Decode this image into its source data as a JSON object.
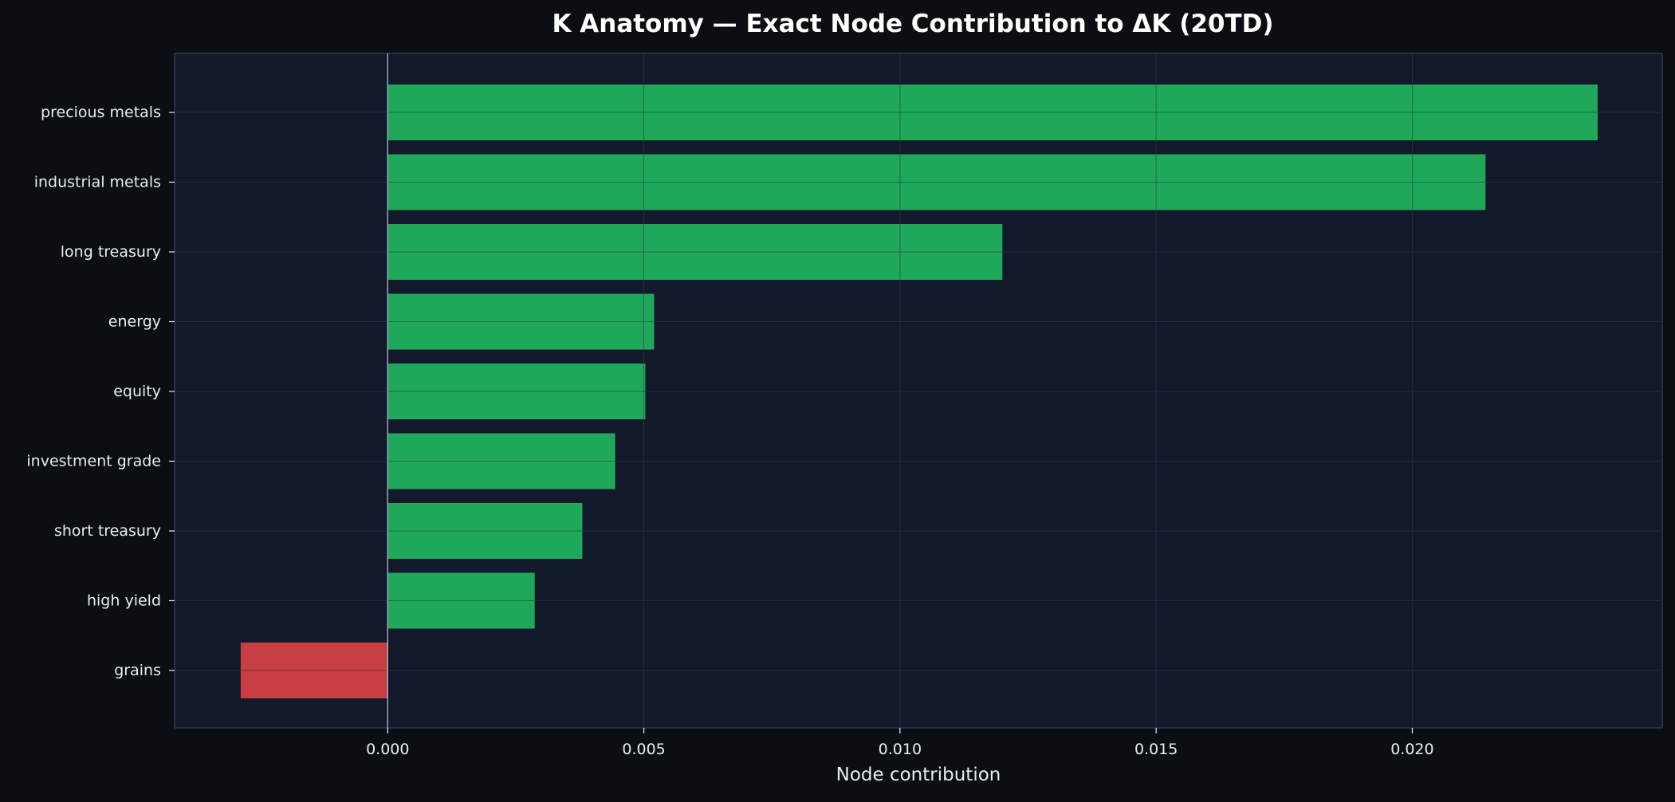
{
  "chart_data": {
    "type": "bar",
    "orientation": "horizontal",
    "title": "K Anatomy — Exact Node Contribution to ΔK (20TD)",
    "xlabel": "Node contribution",
    "ylabel": "",
    "categories": [
      "precious metals",
      "industrial metals",
      "long treasury",
      "energy",
      "equity",
      "investment grade",
      "short treasury",
      "high yield",
      "grains"
    ],
    "values": [
      0.02362,
      0.02143,
      0.012,
      0.0052,
      0.00503,
      0.00444,
      0.0038,
      0.00287,
      -0.00287
    ],
    "xlim": [
      -0.00416,
      0.02488
    ],
    "xticks": [
      0.0,
      0.005,
      0.01,
      0.015,
      0.02
    ],
    "xtick_labels": [
      "0.000",
      "0.005",
      "0.010",
      "0.015",
      "0.020"
    ],
    "grid": true,
    "legend": "none",
    "colors": {
      "positive": "#1fa85a",
      "negative": "#c93e43",
      "figure_background": "#0b0f14",
      "plot_background": "#12192a",
      "plot_border": "#2e3a4f",
      "grid": "#26334a",
      "zero_line": "#9fb3c8",
      "text": "#e8edf2"
    }
  }
}
